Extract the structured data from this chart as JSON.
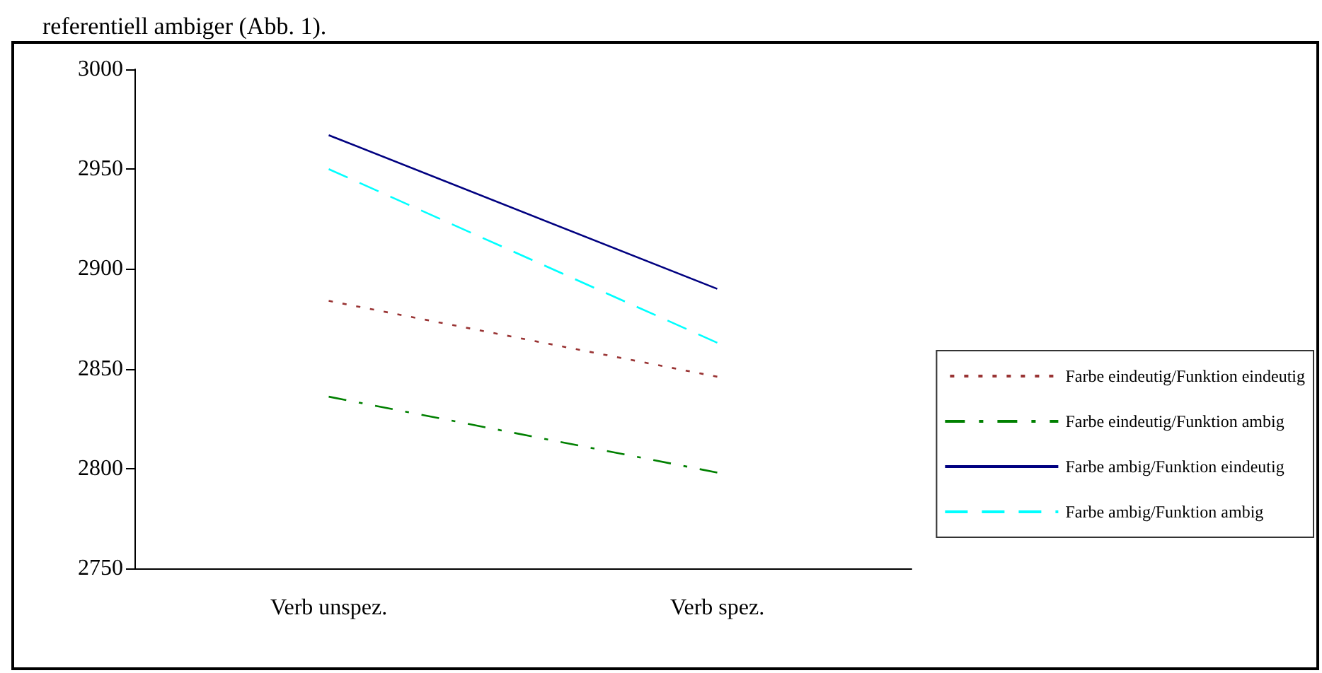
{
  "chart_data": {
    "type": "line",
    "annotations": [
      "referentiell ambiger (Abb. 1)."
    ],
    "categories": [
      "Verb unspez.",
      "Verb spez."
    ],
    "series": [
      {
        "name": "Farbe eindeutig/Funktion eindeutig",
        "color": "#993333",
        "line_style": "dotted",
        "values": [
          2884,
          2846
        ]
      },
      {
        "name": "Farbe eindeutig/Funktion ambig",
        "color": "#008000",
        "line_style": "dashdot",
        "values": [
          2836,
          2798
        ]
      },
      {
        "name": "Farbe ambig/Funktion eindeutig",
        "color": "#000080",
        "line_style": "solid",
        "values": [
          2967,
          2890
        ]
      },
      {
        "name": "Farbe ambig/Funktion ambig",
        "color": "#00ffff",
        "line_style": "dashed",
        "values": [
          2950,
          2863
        ]
      }
    ],
    "ylim": [
      2750,
      3000
    ],
    "yticks": [
      2750,
      2800,
      2850,
      2900,
      2950,
      3000
    ],
    "grid": false,
    "legend": "right",
    "marker": "none"
  }
}
